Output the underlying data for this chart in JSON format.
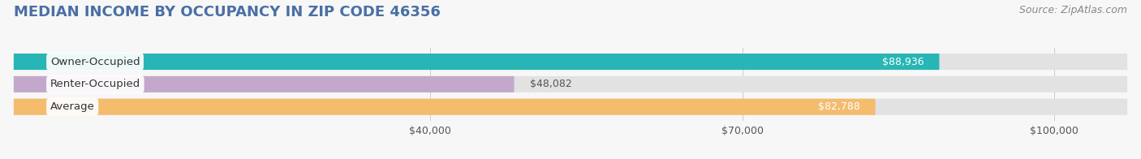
{
  "title": "MEDIAN INCOME BY OCCUPANCY IN ZIP CODE 46356",
  "source": "Source: ZipAtlas.com",
  "categories": [
    "Owner-Occupied",
    "Renter-Occupied",
    "Average"
  ],
  "values": [
    88936,
    48082,
    82788
  ],
  "bar_colors": [
    "#28b5b5",
    "#c4a8cc",
    "#f5bc6e"
  ],
  "value_labels": [
    "$88,936",
    "$48,082",
    "$82,788"
  ],
  "x_ticks": [
    40000,
    70000,
    100000
  ],
  "x_tick_labels": [
    "$40,000",
    "$70,000",
    "$100,000"
  ],
  "xlim_max": 107000,
  "bar_height": 0.72,
  "background_color": "#f7f7f7",
  "bar_bg_color": "#e2e2e2",
  "title_color": "#4a6fa5",
  "title_fontsize": 13,
  "source_fontsize": 9,
  "label_fontsize": 9.5,
  "value_fontsize": 9,
  "tick_fontsize": 9
}
